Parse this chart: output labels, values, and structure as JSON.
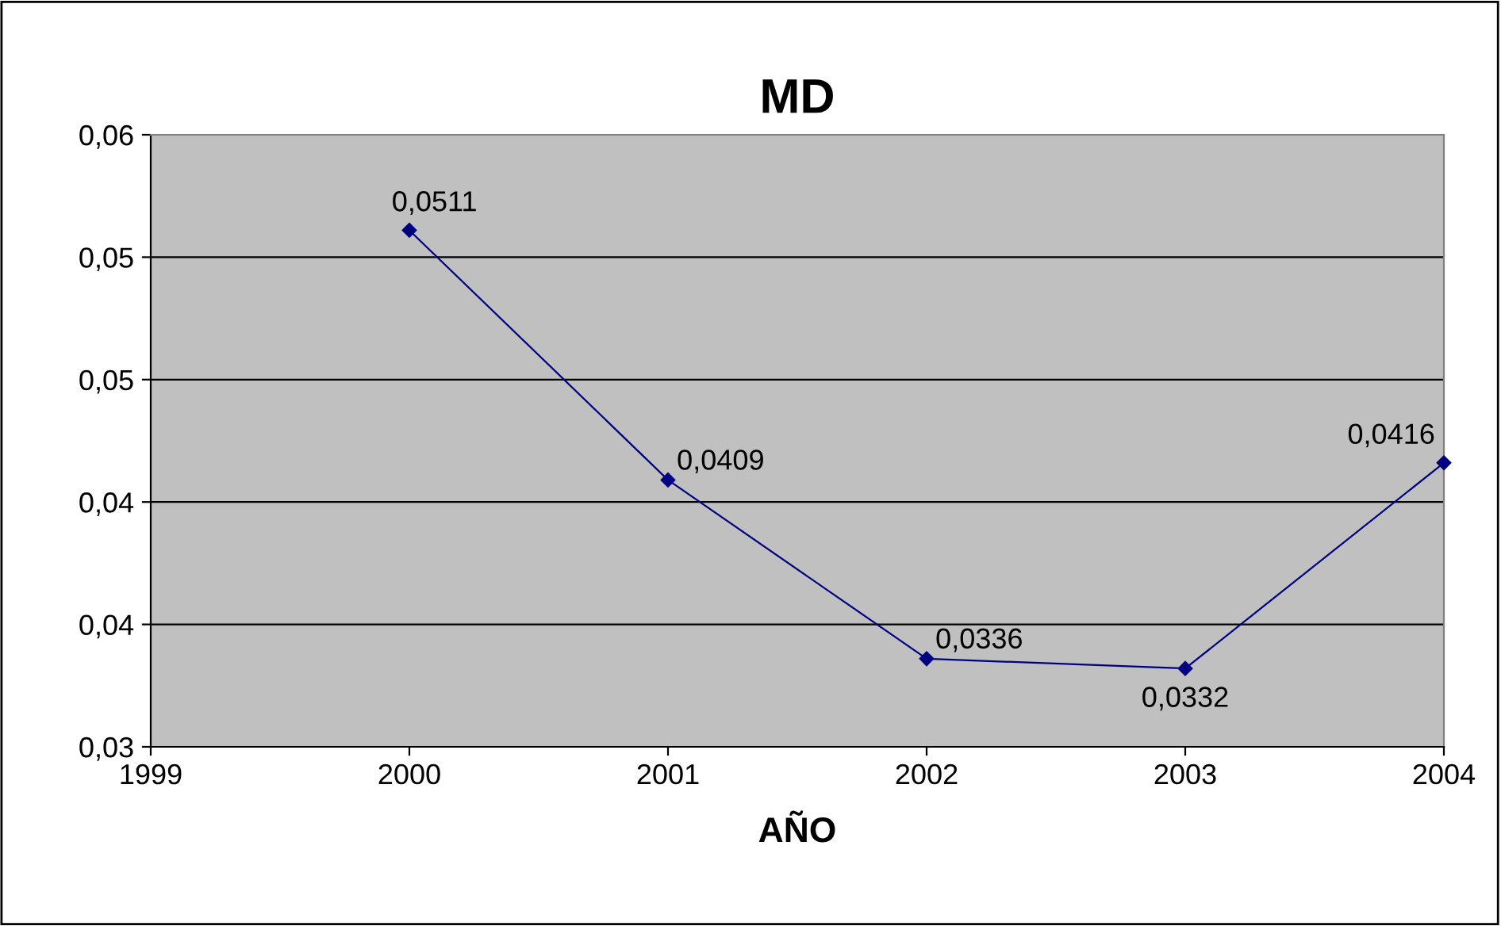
{
  "chart_data": {
    "type": "line",
    "title": "MD",
    "xlabel": "AÑO",
    "x": [
      2000,
      2001,
      2002,
      2003,
      2004
    ],
    "series": [
      {
        "color": "#000080",
        "values": [
          0.0511,
          0.0409,
          0.0336,
          0.0332,
          0.0416
        ],
        "value_labels": [
          "0,0511",
          "0,0409",
          "0,0336",
          "0,0332",
          "0,0416"
        ]
      }
    ],
    "xlim": [
      1999,
      2004
    ],
    "xticks": [
      1999,
      2000,
      2001,
      2002,
      2003,
      2004
    ],
    "ylim": [
      0.03,
      0.055
    ],
    "yticks": [
      {
        "value": 0.03,
        "label": "0,03"
      },
      {
        "value": 0.035,
        "label": "0,04"
      },
      {
        "value": 0.04,
        "label": "0,04"
      },
      {
        "value": 0.045,
        "label": "0,05"
      },
      {
        "value": 0.05,
        "label": "0,05"
      },
      {
        "value": 0.055,
        "label": "0,06"
      }
    ],
    "grid": "y",
    "marker": "diamond",
    "line_style": "solid",
    "legend": false
  }
}
